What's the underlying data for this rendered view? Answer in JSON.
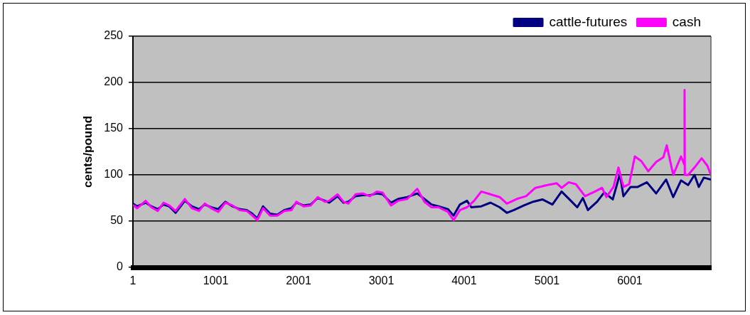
{
  "chart_data": {
    "type": "line",
    "ylabel": "cents/pound",
    "xlim": [
      1,
      6980
    ],
    "xticks": [
      1,
      1001,
      2001,
      3001,
      4001,
      5001,
      6001
    ],
    "ylim": [
      0,
      250
    ],
    "yticks": [
      0,
      50,
      100,
      150,
      200,
      250
    ],
    "grid": "y",
    "legend": "top right",
    "marker": "none",
    "line_style": "solid",
    "series": [
      {
        "name": "cattle-futures",
        "color": "#000080",
        "x": [
          1,
          52,
          155,
          224,
          301,
          370,
          439,
          516,
          628,
          713,
          799,
          868,
          945,
          1031,
          1117,
          1203,
          1289,
          1375,
          1443,
          1503,
          1572,
          1658,
          1744,
          1829,
          1915,
          1975,
          2061,
          2147,
          2233,
          2319,
          2370,
          2473,
          2542,
          2602,
          2688,
          2774,
          2860,
          2945,
          3014,
          3117,
          3203,
          3314,
          3434,
          3520,
          3606,
          3692,
          3804,
          3872,
          3950,
          4035,
          4087,
          4207,
          4319,
          4430,
          4516,
          4602,
          4722,
          4834,
          4945,
          5066,
          5177,
          5289,
          5366,
          5434,
          5495,
          5606,
          5692,
          5795,
          5881,
          5924,
          6010,
          6096,
          6207,
          6319,
          6439,
          6525,
          6619,
          6705,
          6782,
          6834,
          6894,
          6980
        ],
        "values": [
          69,
          66,
          70,
          66,
          63,
          68,
          66,
          59,
          72,
          66,
          63,
          68,
          65,
          63,
          71,
          66,
          63,
          62,
          58,
          53,
          66,
          58,
          57,
          62,
          64,
          70,
          67,
          68,
          75,
          72,
          70,
          77,
          70,
          71,
          77,
          78,
          78,
          80,
          79,
          70,
          74,
          76,
          80,
          74,
          68,
          66,
          63,
          56,
          68,
          72,
          65,
          66,
          70,
          65,
          59,
          62,
          67,
          71,
          73.5,
          68,
          82,
          72,
          65,
          75,
          62,
          71,
          81,
          73.5,
          101,
          77,
          87,
          87,
          92,
          80,
          95,
          76,
          94,
          89,
          100,
          87,
          97,
          95
        ]
      },
      {
        "name": "cash",
        "color": "#ff00ff",
        "x": [
          1,
          52,
          155,
          224,
          301,
          370,
          439,
          516,
          628,
          713,
          799,
          868,
          945,
          1031,
          1117,
          1203,
          1289,
          1375,
          1443,
          1503,
          1572,
          1658,
          1744,
          1829,
          1915,
          1975,
          2061,
          2147,
          2233,
          2319,
          2370,
          2473,
          2542,
          2602,
          2688,
          2774,
          2860,
          2945,
          3014,
          3117,
          3203,
          3314,
          3434,
          3520,
          3606,
          3692,
          3804,
          3872,
          3950,
          4035,
          4121,
          4207,
          4319,
          4430,
          4516,
          4636,
          4748,
          4860,
          5005,
          5117,
          5177,
          5263,
          5349,
          5460,
          5580,
          5666,
          5718,
          5804,
          5864,
          5924,
          5993,
          6061,
          6139,
          6224,
          6319,
          6405,
          6447,
          6525,
          6619,
          6660,
          6662,
          6665,
          6705,
          6782,
          6868,
          6937,
          6980
        ],
        "values": [
          67.5,
          64,
          72,
          65,
          61,
          70,
          67,
          61,
          74,
          64,
          61,
          69,
          64,
          60,
          70,
          67,
          62,
          61,
          56,
          51,
          64,
          56,
          56,
          61,
          62,
          71,
          66,
          67,
          76,
          71,
          72,
          79,
          71,
          69,
          79,
          80,
          77,
          82,
          81,
          67,
          72,
          74,
          85,
          71,
          65,
          65,
          60,
          51,
          62,
          65,
          72,
          82,
          79,
          76,
          69,
          74,
          77,
          86,
          89,
          91,
          86,
          92,
          90,
          77,
          82,
          86,
          76,
          87,
          108,
          87,
          90,
          120,
          115,
          104,
          114,
          119,
          132,
          100,
          120,
          111,
          192,
          100,
          100,
          108,
          118,
          110,
          100
        ]
      }
    ]
  }
}
